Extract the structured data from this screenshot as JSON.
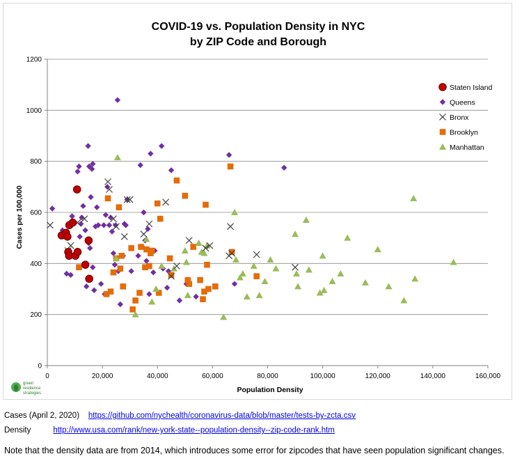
{
  "chart_data": {
    "type": "scatter",
    "title_lines": [
      "COVID-19 vs. Population Density in NYC",
      "by ZIP Code and Borough"
    ],
    "xlabel": "Population Density",
    "ylabel": "Cases per 100,000",
    "xlim": [
      0,
      160000
    ],
    "ylim": [
      0,
      1200
    ],
    "xticks": [
      0,
      20000,
      40000,
      60000,
      80000,
      100000,
      120000,
      140000,
      160000
    ],
    "xtick_labels": [
      "0",
      "20,000",
      "40,000",
      "60,000",
      "80,000",
      "100,000",
      "120,000",
      "140,000",
      "160,000"
    ],
    "yticks": [
      0,
      200,
      400,
      600,
      800,
      1000,
      1200
    ],
    "ytick_labels": [
      "0",
      "200",
      "400",
      "600",
      "800",
      "1000",
      "1200"
    ],
    "grid": "horizontal",
    "legend_position": "right",
    "series": [
      {
        "name": "Staten Island",
        "marker": "circle",
        "color": "#c00000",
        "edge": "#7a0000",
        "points": [
          [
            5200,
            510
          ],
          [
            6800,
            520
          ],
          [
            7300,
            505
          ],
          [
            7600,
            445
          ],
          [
            8000,
            550
          ],
          [
            7900,
            430
          ],
          [
            9200,
            560
          ],
          [
            10200,
            430
          ],
          [
            10800,
            690
          ],
          [
            11000,
            445
          ],
          [
            13800,
            395
          ],
          [
            15000,
            490
          ],
          [
            15200,
            340
          ]
        ]
      },
      {
        "name": "Queens",
        "marker": "diamond",
        "color": "#7030a0",
        "points": [
          [
            1800,
            615
          ],
          [
            5500,
            530
          ],
          [
            7000,
            360
          ],
          [
            8500,
            355
          ],
          [
            9000,
            585
          ],
          [
            11000,
            760
          ],
          [
            11500,
            780
          ],
          [
            11800,
            505
          ],
          [
            12200,
            555
          ],
          [
            12500,
            580
          ],
          [
            13000,
            625
          ],
          [
            13800,
            530
          ],
          [
            14200,
            310
          ],
          [
            14800,
            860
          ],
          [
            15000,
            480
          ],
          [
            15200,
            780
          ],
          [
            15500,
            460
          ],
          [
            15800,
            660
          ],
          [
            16200,
            770
          ],
          [
            16500,
            385
          ],
          [
            16500,
            790
          ],
          [
            17000,
            295
          ],
          [
            17500,
            545
          ],
          [
            18000,
            620
          ],
          [
            18500,
            550
          ],
          [
            19500,
            320
          ],
          [
            20500,
            550
          ],
          [
            20800,
            280
          ],
          [
            21200,
            590
          ],
          [
            21800,
            700
          ],
          [
            22500,
            550
          ],
          [
            23000,
            580
          ],
          [
            23500,
            525
          ],
          [
            24000,
            440
          ],
          [
            24500,
            395
          ],
          [
            24800,
            550
          ],
          [
            25500,
            1040
          ],
          [
            25800,
            370
          ],
          [
            26500,
            240
          ],
          [
            27500,
            430
          ],
          [
            28000,
            555
          ],
          [
            28500,
            550
          ],
          [
            29000,
            650
          ],
          [
            30500,
            370
          ],
          [
            33000,
            430
          ],
          [
            33800,
            785
          ],
          [
            34500,
            465
          ],
          [
            35000,
            600
          ],
          [
            35500,
            490
          ],
          [
            36000,
            410
          ],
          [
            36500,
            535
          ],
          [
            37000,
            280
          ],
          [
            37500,
            830
          ],
          [
            38500,
            365
          ],
          [
            39000,
            450
          ],
          [
            41500,
            860
          ],
          [
            42000,
            380
          ],
          [
            43500,
            305
          ],
          [
            44000,
            370
          ],
          [
            45000,
            765
          ],
          [
            48000,
            255
          ],
          [
            50500,
            320
          ],
          [
            54000,
            270
          ],
          [
            66000,
            825
          ],
          [
            68000,
            320
          ],
          [
            86000,
            775
          ]
        ]
      },
      {
        "name": "Bronx",
        "marker": "x",
        "color": "#404040",
        "points": [
          [
            1000,
            550
          ],
          [
            7500,
            450
          ],
          [
            8500,
            470
          ],
          [
            11000,
            560
          ],
          [
            13500,
            575
          ],
          [
            22000,
            720
          ],
          [
            22500,
            690
          ],
          [
            24000,
            575
          ],
          [
            25000,
            545
          ],
          [
            28000,
            505
          ],
          [
            29000,
            650
          ],
          [
            30000,
            650
          ],
          [
            35000,
            515
          ],
          [
            37000,
            555
          ],
          [
            43000,
            640
          ],
          [
            45000,
            350
          ],
          [
            47000,
            390
          ],
          [
            51500,
            490
          ],
          [
            57500,
            460
          ],
          [
            59000,
            470
          ],
          [
            66000,
            430
          ],
          [
            66500,
            545
          ],
          [
            67000,
            440
          ],
          [
            76000,
            435
          ],
          [
            90000,
            385
          ]
        ]
      },
      {
        "name": "Brooklyn",
        "marker": "square",
        "color": "#e46c0a",
        "points": [
          [
            11500,
            385
          ],
          [
            21500,
            280
          ],
          [
            22000,
            655
          ],
          [
            23000,
            290
          ],
          [
            24000,
            365
          ],
          [
            25000,
            420
          ],
          [
            26000,
            620
          ],
          [
            26500,
            380
          ],
          [
            27000,
            430
          ],
          [
            27500,
            310
          ],
          [
            30500,
            460
          ],
          [
            31000,
            220
          ],
          [
            32000,
            255
          ],
          [
            33500,
            285
          ],
          [
            34000,
            465
          ],
          [
            35500,
            385
          ],
          [
            36000,
            455
          ],
          [
            37000,
            390
          ],
          [
            37500,
            440
          ],
          [
            38000,
            450
          ],
          [
            40000,
            635
          ],
          [
            40500,
            285
          ],
          [
            41000,
            575
          ],
          [
            44500,
            420
          ],
          [
            45000,
            355
          ],
          [
            47000,
            725
          ],
          [
            50000,
            665
          ],
          [
            51000,
            335
          ],
          [
            51500,
            320
          ],
          [
            53000,
            465
          ],
          [
            55500,
            335
          ],
          [
            56500,
            260
          ],
          [
            57000,
            290
          ],
          [
            57500,
            630
          ],
          [
            58000,
            395
          ],
          [
            58500,
            300
          ],
          [
            61000,
            310
          ],
          [
            66500,
            780
          ],
          [
            67000,
            445
          ],
          [
            76000,
            350
          ]
        ]
      },
      {
        "name": "Manhattan",
        "marker": "triangle",
        "color": "#9bbb59",
        "points": [
          [
            25000,
            420
          ],
          [
            25500,
            815
          ],
          [
            32000,
            200
          ],
          [
            36000,
            495
          ],
          [
            38000,
            250
          ],
          [
            39500,
            300
          ],
          [
            41500,
            390
          ],
          [
            46000,
            380
          ],
          [
            50000,
            450
          ],
          [
            50500,
            405
          ],
          [
            51000,
            275
          ],
          [
            55000,
            480
          ],
          [
            56000,
            445
          ],
          [
            57000,
            440
          ],
          [
            58000,
            470
          ],
          [
            64000,
            190
          ],
          [
            68000,
            600
          ],
          [
            68500,
            415
          ],
          [
            70000,
            345
          ],
          [
            71000,
            360
          ],
          [
            72500,
            270
          ],
          [
            75000,
            390
          ],
          [
            77000,
            275
          ],
          [
            79000,
            330
          ],
          [
            81000,
            415
          ],
          [
            83000,
            380
          ],
          [
            90000,
            515
          ],
          [
            90500,
            360
          ],
          [
            91000,
            310
          ],
          [
            94000,
            570
          ],
          [
            95000,
            375
          ],
          [
            99000,
            285
          ],
          [
            100000,
            430
          ],
          [
            100500,
            295
          ],
          [
            103500,
            330
          ],
          [
            106500,
            360
          ],
          [
            109000,
            500
          ],
          [
            115500,
            325
          ],
          [
            120000,
            455
          ],
          [
            124000,
            310
          ],
          [
            129500,
            255
          ],
          [
            133000,
            655
          ],
          [
            133500,
            340
          ],
          [
            147500,
            405
          ]
        ]
      }
    ]
  },
  "footer": {
    "cases_label": "Cases (April 2, 2020)",
    "cases_url": "https://github.com/nychealth/coronavirus-data/blob/master/tests-by-zcta.csv",
    "density_label": "Density",
    "density_url": "http://www.usa.com/rank/new-york-state--population-density--zip-code-rank.htm",
    "note": "Note that the density data are from 2014, which introduces some error for zipcodes that have seen population significant changes."
  },
  "logo": {
    "text_lines": [
      "green",
      "resilience",
      "strategies"
    ],
    "color": "#2e7d32"
  }
}
